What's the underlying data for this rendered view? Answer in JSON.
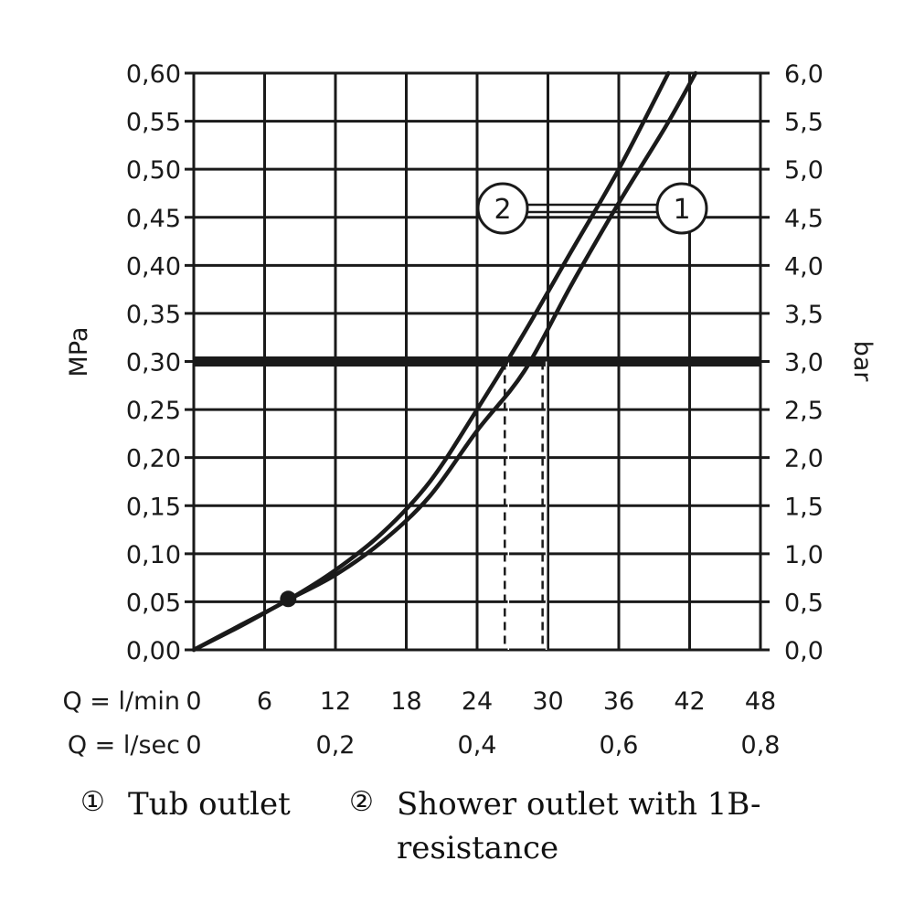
{
  "chart_data": {
    "type": "line",
    "xlabel": "Q = l/min",
    "x2label": "Q = l/sec",
    "ylabel": "MPa",
    "y2label": "bar",
    "xlim": [
      0,
      48
    ],
    "ylim": [
      0,
      0.6
    ],
    "x_ticks": [
      "0",
      "6",
      "12",
      "18",
      "24",
      "30",
      "36",
      "42",
      "48"
    ],
    "x_ticks_values": [
      0,
      6,
      12,
      18,
      24,
      30,
      36,
      42,
      48
    ],
    "x2_ticks": [
      "0",
      "0,2",
      "0,4",
      "0,6",
      "0,8"
    ],
    "x2_ticks_values": [
      0,
      12,
      24,
      36,
      48
    ],
    "y_ticks": [
      "0,00",
      "0,05",
      "0,10",
      "0,15",
      "0,20",
      "0,25",
      "0,30",
      "0,35",
      "0,40",
      "0,45",
      "0,50",
      "0,55",
      "0,60"
    ],
    "y2_ticks": [
      "0,0",
      "0,5",
      "1,0",
      "1,5",
      "2,0",
      "2,5",
      "3,0",
      "3,5",
      "4,0",
      "4,5",
      "5,0",
      "5,5",
      "6,0"
    ],
    "grid": true,
    "reference_line": {
      "y": 0.3
    },
    "drop_lines": [
      {
        "series": "2",
        "x": 26.5,
        "y": 0.3
      },
      {
        "series": "1",
        "x": 29.7,
        "y": 0.3
      }
    ],
    "point": {
      "x": 8,
      "y": 0.053
    },
    "series": [
      {
        "name": "1",
        "x": [
          0,
          4,
          8,
          12,
          16,
          20,
          24,
          28,
          32,
          36,
          40,
          42.5
        ],
        "values": [
          0,
          0.025,
          0.052,
          0.078,
          0.113,
          0.16,
          0.228,
          0.29,
          0.38,
          0.465,
          0.545,
          0.6
        ]
      },
      {
        "name": "2",
        "x": [
          0,
          4,
          8,
          12,
          16,
          20,
          24,
          28,
          32,
          36,
          40.2
        ],
        "values": [
          0,
          0.026,
          0.052,
          0.083,
          0.122,
          0.175,
          0.25,
          0.33,
          0.415,
          0.5,
          0.6
        ]
      }
    ]
  },
  "legend": [
    {
      "symbol": "①",
      "label": "Tub outlet"
    },
    {
      "symbol": "②",
      "label": "Shower outlet with 1B-resistance"
    }
  ],
  "callouts": {
    "series_2": "2",
    "series_1": "1"
  }
}
